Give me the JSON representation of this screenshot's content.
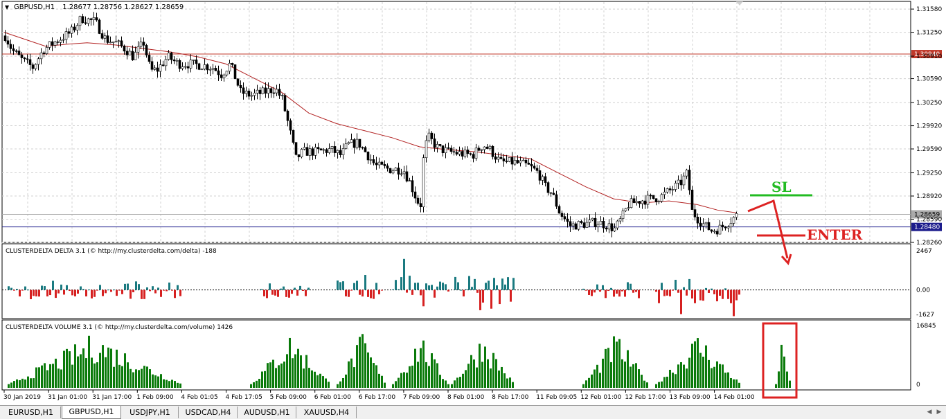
{
  "window": {
    "chart_title": "GBPUSD,H1",
    "ohlc_readout": "1.28677 1.28756 1.28627 1.28659"
  },
  "colors": {
    "background": "#ffffff",
    "grid": "#d0d0d0",
    "ma": "#b22222",
    "resistance": "#c0392b",
    "support": "#1c1c8c",
    "bid": "#aaaaaa",
    "positive": "#1a7a80",
    "negative": "#d62020",
    "volume": "#0a7a0a",
    "annotation_sl": "#22bb22",
    "annotation_enter": "#dd2222"
  },
  "chart_data": [
    {
      "type": "candlestick",
      "symbol": "GBPUSD",
      "timeframe": "H1",
      "ylim": [
        1.2826,
        1.3165
      ],
      "yticks": [
        "1.31580",
        "1.31250",
        "1.30910",
        "1.30590",
        "1.30250",
        "1.29920",
        "1.29590",
        "1.29250",
        "1.28920",
        "1.28590",
        "1.28260"
      ],
      "x_labels": [
        "30 Jan 2019",
        "31 Jan 01:00",
        "31 Jan 17:00",
        "1 Feb 09:00",
        "4 Feb 01:05",
        "4 Feb 17:05",
        "5 Feb 09:00",
        "6 Feb 01:00",
        "6 Feb 17:00",
        "7 Feb 09:00",
        "8 Feb 01:00",
        "8 Feb 17:00",
        "11 Feb 09:05",
        "12 Feb 01:00",
        "12 Feb 17:00",
        "13 Feb 09:00",
        "14 Feb 01:00"
      ],
      "price_path": [
        [
          0,
          1.312
        ],
        [
          10,
          1.31
        ],
        [
          25,
          1.3085
        ],
        [
          40,
          1.3075
        ],
        [
          55,
          1.31
        ],
        [
          70,
          1.311
        ],
        [
          95,
          1.3125
        ],
        [
          110,
          1.3145
        ],
        [
          130,
          1.314
        ],
        [
          145,
          1.3115
        ],
        [
          160,
          1.311
        ],
        [
          175,
          1.31
        ],
        [
          185,
          1.309
        ],
        [
          200,
          1.311
        ],
        [
          210,
          1.307
        ],
        [
          220,
          1.3072
        ],
        [
          235,
          1.309
        ],
        [
          250,
          1.308
        ],
        [
          265,
          1.308
        ],
        [
          285,
          1.3078
        ],
        [
          300,
          1.3075
        ],
        [
          312,
          1.3065
        ],
        [
          325,
          1.308
        ],
        [
          340,
          1.304
        ],
        [
          355,
          1.3035
        ],
        [
          375,
          1.304
        ],
        [
          390,
          1.3045
        ],
        [
          400,
          1.303
        ],
        [
          410,
          1.299
        ],
        [
          420,
          1.2945
        ],
        [
          430,
          1.2955
        ],
        [
          450,
          1.2955
        ],
        [
          470,
          1.2958
        ],
        [
          485,
          1.295
        ],
        [
          495,
          1.2965
        ],
        [
          510,
          1.2968
        ],
        [
          520,
          1.2955
        ],
        [
          535,
          1.2935
        ],
        [
          555,
          1.293
        ],
        [
          575,
          1.293
        ],
        [
          585,
          1.291
        ],
        [
          595,
          1.2885
        ],
        [
          600,
          1.288
        ],
        [
          605,
          1.296
        ],
        [
          612,
          1.2975
        ],
        [
          625,
          1.296
        ],
        [
          640,
          1.2955
        ],
        [
          660,
          1.2952
        ],
        [
          675,
          1.295
        ],
        [
          690,
          1.2965
        ],
        [
          700,
          1.2958
        ],
        [
          715,
          1.294
        ],
        [
          735,
          1.294
        ],
        [
          755,
          1.2935
        ],
        [
          770,
          1.2925
        ],
        [
          780,
          1.2905
        ],
        [
          790,
          1.2895
        ],
        [
          800,
          1.287
        ],
        [
          815,
          1.285
        ],
        [
          835,
          1.2852
        ],
        [
          855,
          1.2855
        ],
        [
          870,
          1.285
        ],
        [
          880,
          1.2845
        ],
        [
          890,
          1.286
        ],
        [
          900,
          1.288
        ],
        [
          915,
          1.2885
        ],
        [
          930,
          1.2888
        ],
        [
          945,
          1.289
        ],
        [
          960,
          1.29
        ],
        [
          975,
          1.291
        ],
        [
          985,
          1.2925
        ],
        [
          992,
          1.287
        ],
        [
          1000,
          1.286
        ],
        [
          1010,
          1.285
        ],
        [
          1020,
          1.2843
        ],
        [
          1030,
          1.2845
        ],
        [
          1045,
          1.2855
        ],
        [
          1058,
          1.2866
        ]
      ],
      "ma_path": [
        [
          0,
          1.3125
        ],
        [
          30,
          1.3115
        ],
        [
          60,
          1.3105
        ],
        [
          90,
          1.3108
        ],
        [
          120,
          1.311
        ],
        [
          160,
          1.3107
        ],
        [
          200,
          1.3102
        ],
        [
          240,
          1.3097
        ],
        [
          280,
          1.309
        ],
        [
          320,
          1.308
        ],
        [
          360,
          1.306
        ],
        [
          400,
          1.304
        ],
        [
          440,
          1.301
        ],
        [
          480,
          1.2995
        ],
        [
          520,
          1.2985
        ],
        [
          560,
          1.2975
        ],
        [
          600,
          1.2962
        ],
        [
          640,
          1.2958
        ],
        [
          680,
          1.2955
        ],
        [
          720,
          1.295
        ],
        [
          760,
          1.2945
        ],
        [
          800,
          1.2925
        ],
        [
          840,
          1.2905
        ],
        [
          880,
          1.2888
        ],
        [
          920,
          1.2882
        ],
        [
          960,
          1.2885
        ],
        [
          1000,
          1.288
        ],
        [
          1030,
          1.2872
        ],
        [
          1058,
          1.2868
        ]
      ],
      "lines": [
        {
          "label": "1.30940",
          "value": 1.3094,
          "color": "#c0392b"
        },
        {
          "label": "1.28480",
          "value": 1.2848,
          "color": "#1c1c8c"
        },
        {
          "label": "1.28659",
          "value": 1.28659,
          "color": "#aaaaaa"
        }
      ],
      "annotations": [
        {
          "text": "SL",
          "color": "#22bb22"
        },
        {
          "text": "ENTER",
          "color": "#dd2222"
        }
      ]
    },
    {
      "type": "bar",
      "title": "CLUSTERDELTA DELTA 3.1 (© http://my.clusterdelta.com/delta) -188",
      "ylim": [
        -1627,
        2467
      ],
      "yticks": [
        "2467",
        "0.00",
        "-1627"
      ],
      "clusters": [
        {
          "start": 5,
          "end": 255,
          "pattern": "mixed"
        },
        {
          "start": 370,
          "end": 440,
          "pattern": "mixed"
        },
        {
          "start": 480,
          "end": 545,
          "pattern": "mixed"
        },
        {
          "start": 560,
          "end": 640,
          "pattern": "up"
        },
        {
          "start": 650,
          "end": 735,
          "pattern": "up"
        },
        {
          "start": 835,
          "end": 915,
          "pattern": "mixed"
        },
        {
          "start": 940,
          "end": 1060,
          "pattern": "down"
        }
      ]
    },
    {
      "type": "bar",
      "title": "CLUSTERDELTA VOLUME 3.1 (© http://my.clusterdelta.com/volume) 1426",
      "ylim": [
        0,
        16845
      ],
      "yticks": [
        "16845",
        "0"
      ],
      "clusters": [
        {
          "start": 5,
          "end": 255
        },
        {
          "start": 355,
          "end": 470
        },
        {
          "start": 480,
          "end": 550
        },
        {
          "start": 560,
          "end": 640
        },
        {
          "start": 645,
          "end": 735
        },
        {
          "start": 835,
          "end": 930
        },
        {
          "start": 940,
          "end": 1062
        },
        {
          "start": 1113,
          "end": 1134
        }
      ]
    }
  ],
  "tabs": [
    {
      "label": "EURUSD,H1",
      "active": false
    },
    {
      "label": "GBPUSD,H1",
      "active": true
    },
    {
      "label": "USDJPY,H1",
      "active": false
    },
    {
      "label": "USDCAD,H4",
      "active": false
    },
    {
      "label": "AUDUSD,H1",
      "active": false
    },
    {
      "label": "XAUUSD,H4",
      "active": false
    }
  ]
}
